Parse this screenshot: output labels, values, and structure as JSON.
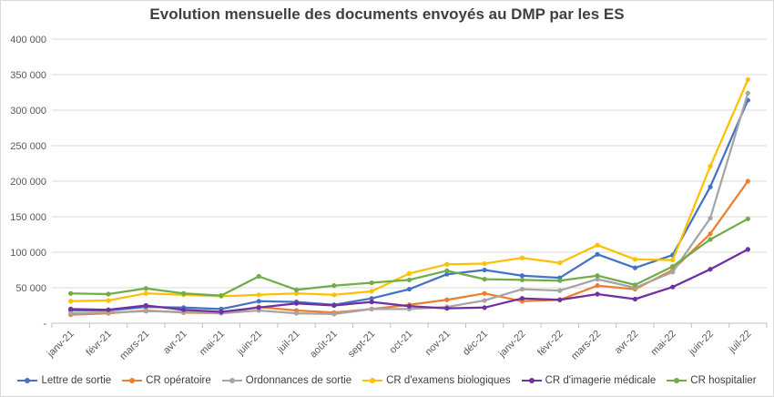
{
  "chart_data": {
    "type": "line",
    "title": "Evolution mensuelle des documents envoyés au DMP par les ES",
    "categories": [
      "janv-21",
      "févr-21",
      "mars-21",
      "avr-21",
      "mai-21",
      "juin-21",
      "juil-21",
      "août-21",
      "sept-21",
      "oct-21",
      "nov-21",
      "déc-21",
      "janv-22",
      "févr-22",
      "mars-22",
      "avr-22",
      "mai-22",
      "juin-22",
      "juil-22"
    ],
    "ylim": [
      0,
      400000
    ],
    "yticks": [
      0,
      50000,
      100000,
      150000,
      200000,
      250000,
      300000,
      350000,
      400000
    ],
    "ytick_labels": [
      "-",
      "50 000",
      "100 000",
      "150 000",
      "200 000",
      "250 000",
      "300 000",
      "350 000",
      "400 000"
    ],
    "grid": true,
    "legend_position": "bottom",
    "series": [
      {
        "name": "Lettre de sortie",
        "color": "#4472c4",
        "values": [
          18000,
          18000,
          23000,
          22000,
          20000,
          31000,
          30000,
          26000,
          35000,
          48000,
          69000,
          75000,
          67000,
          64000,
          97000,
          78000,
          96000,
          192000,
          314000
        ]
      },
      {
        "name": "CR opératoire",
        "color": "#ed7d31",
        "values": [
          12000,
          14000,
          18000,
          15000,
          14000,
          23000,
          18000,
          15000,
          20000,
          26000,
          33000,
          42000,
          31000,
          33000,
          53000,
          48000,
          75000,
          126000,
          200000
        ]
      },
      {
        "name": "Ordonnances de sortie",
        "color": "#a5a5a5",
        "values": [
          14000,
          15000,
          17000,
          16000,
          14000,
          18000,
          14000,
          13000,
          20000,
          20000,
          23000,
          32000,
          48000,
          46000,
          62000,
          50000,
          72000,
          148000,
          324000
        ]
      },
      {
        "name": "CR d'examens biologiques",
        "color": "#ffc000",
        "values": [
          31000,
          32000,
          42000,
          40000,
          38000,
          40000,
          42000,
          40000,
          45000,
          70000,
          83000,
          84000,
          92000,
          85000,
          110000,
          90000,
          89000,
          221000,
          343000
        ]
      },
      {
        "name": "CR d'imagerie médicale",
        "color": "#7030a0",
        "values": [
          20000,
          19000,
          25000,
          19000,
          16000,
          22000,
          28000,
          25000,
          30000,
          24000,
          21000,
          22000,
          35000,
          33000,
          41000,
          34000,
          51000,
          76000,
          104000
        ]
      },
      {
        "name": "CR hospitalier",
        "color": "#70ad47",
        "values": [
          42000,
          41000,
          49000,
          42000,
          39000,
          66000,
          47000,
          53000,
          57000,
          61000,
          74000,
          62000,
          61000,
          60000,
          67000,
          54000,
          80000,
          118000,
          147000
        ]
      }
    ]
  }
}
